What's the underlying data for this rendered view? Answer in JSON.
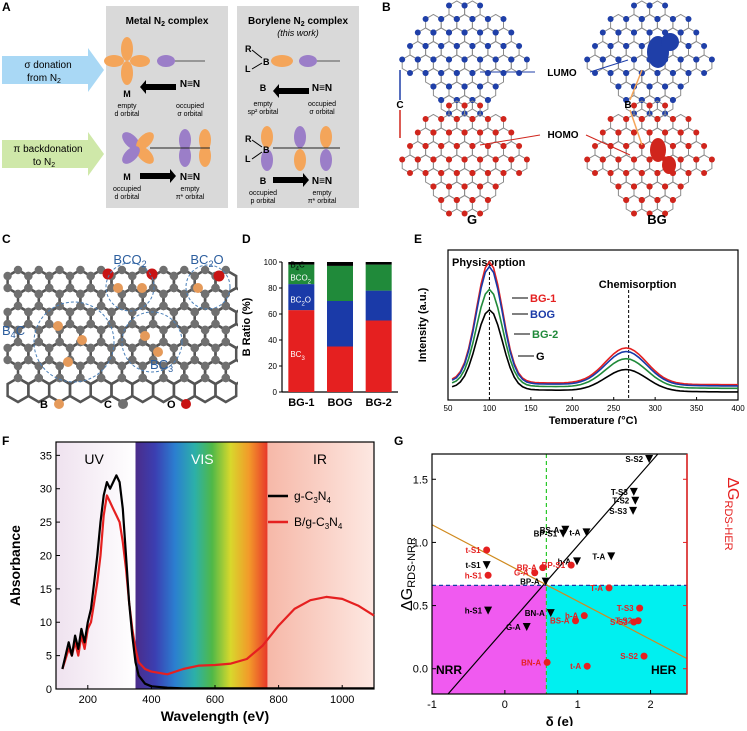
{
  "panel_labels": {
    "a": "A",
    "b": "B",
    "c": "C",
    "d": "D",
    "e": "E",
    "f": "F",
    "g": "G"
  },
  "panel_a": {
    "donation_label_1": "σ donation",
    "donation_label_2": "from N",
    "backdonation_label_1": "π backdonation",
    "backdonation_label_2": "to N",
    "metal_title": "Metal N",
    "metal_title_suffix": " complex",
    "borylene_title": "Borylene N",
    "borylene_title_suffix": " complex",
    "borylene_subtitle": "(this work)",
    "m_label": "M",
    "b_label": "B",
    "n2_label": "N≡N",
    "r_label": "R",
    "l_label": "L",
    "cap_m_top_1": "empty",
    "cap_m_top_2": "d orbital",
    "cap_n_top_1": "occupied",
    "cap_n_top_2": "σ orbital",
    "cap_b_top_1": "empty",
    "cap_b_top_2": "sp² orbital",
    "cap_nb_top_1": "occupied",
    "cap_nb_top_2": "σ orbital",
    "cap_m_bot_1": "occupied",
    "cap_m_bot_2": "d orbital",
    "cap_n_bot_1": "empty",
    "cap_n_bot_2": "π* orbital",
    "cap_b_bot_1": "occupied",
    "cap_b_bot_2": "p orbital",
    "cap_nb_bot_1": "empty",
    "cap_nb_bot_2": "π* orbital",
    "colors": {
      "orange": "#f4a55a",
      "purple": "#9b7ec8",
      "blue_arrow": "#a9d8f5",
      "green_arrow": "#cfe8a9",
      "box": "#d9d9d9"
    }
  },
  "panel_b": {
    "lumo": "LUMO",
    "homo": "HOMO",
    "c_label": "C",
    "b_label": "B",
    "g_label": "G",
    "bg_label": "BG",
    "colors": {
      "lumo": "#1f3fa8",
      "homo": "#d0251c",
      "atom": "#8a8a8a"
    }
  },
  "panel_c": {
    "bco2": "BCO",
    "bco2_sub": "2",
    "bc2o": "BC",
    "bc2o_sub": "2",
    "bc2o_tail": "O",
    "b4c": "B",
    "b4c_sub": "4",
    "b4c_tail": "C",
    "bc3": "BC",
    "bc3_sub": "3",
    "legend": [
      "B",
      "C",
      "O"
    ],
    "colors": {
      "b": "#e59a5a",
      "c": "#707070",
      "o": "#c81414",
      "circle": "#4a7fb8"
    }
  },
  "chart_data": [
    {
      "id": "D",
      "type": "bar",
      "stacked": true,
      "ylabel": "B Ratio (%)",
      "categories": [
        "BG-1",
        "BOG",
        "BG-2"
      ],
      "ylim": [
        0,
        100
      ],
      "yticks": [
        0,
        20,
        40,
        60,
        80,
        100
      ],
      "series": [
        {
          "name": "BC3",
          "label": "BC",
          "sub": "3",
          "color": "#e52020",
          "values": [
            63,
            35,
            55
          ]
        },
        {
          "name": "BC2O",
          "label": "BC",
          "sub": "2",
          "tail": "O",
          "color": "#1a3aa8",
          "values": [
            20,
            35,
            23
          ]
        },
        {
          "name": "BCO2",
          "label": "BCO",
          "sub": "2",
          "color": "#208a3a",
          "values": [
            15,
            27,
            20
          ]
        },
        {
          "name": "B4C",
          "label": "B",
          "sub": "4",
          "tail": "C",
          "color": "#000000",
          "values": [
            2,
            3,
            2
          ]
        }
      ]
    },
    {
      "id": "E",
      "type": "line",
      "xlabel": "Temperature (°C)",
      "ylabel": "Intensity (a.u.)",
      "xlim": [
        50,
        400
      ],
      "xticks": [
        50,
        100,
        150,
        200,
        250,
        300,
        350,
        400
      ],
      "annotations": [
        "Physisorption",
        "Chemisorption"
      ],
      "series": [
        {
          "name": "BG-1",
          "color": "#e52020",
          "peak1": 1.0,
          "peak2": 0.3,
          "base": 0.12
        },
        {
          "name": "BOG",
          "color": "#1a3aa8",
          "peak1": 0.97,
          "peak2": 0.28,
          "base": 0.11
        },
        {
          "name": "BG-2",
          "color": "#208a3a",
          "peak1": 0.8,
          "peak2": 0.24,
          "base": 0.09
        },
        {
          "name": "G",
          "color": "#000000",
          "peak1": 0.66,
          "peak2": 0.18,
          "base": 0.06
        }
      ]
    },
    {
      "id": "F",
      "type": "line",
      "xlabel": "Wavelength (eV)",
      "ylabel": "Absorbance",
      "xlim": [
        100,
        1100
      ],
      "ylim": [
        0,
        37
      ],
      "xticks": [
        200,
        400,
        600,
        800,
        1000
      ],
      "yticks": [
        0,
        5,
        10,
        15,
        20,
        25,
        30,
        35
      ],
      "regions": [
        "UV",
        "VIS",
        "IR"
      ],
      "series": [
        {
          "name": "g-C3N4",
          "label": "g-C",
          "sub1": "3",
          "mid": "N",
          "sub2": "4",
          "color": "#000000",
          "x": [
            120,
            140,
            150,
            160,
            170,
            180,
            190,
            200,
            210,
            220,
            230,
            240,
            250,
            260,
            270,
            280,
            290,
            300,
            310,
            320,
            330,
            340,
            350,
            360,
            380,
            400,
            450,
            500,
            600,
            700,
            800,
            900,
            1000,
            1100
          ],
          "y": [
            3,
            7,
            5,
            8,
            6,
            9,
            7,
            10,
            12,
            16,
            20,
            25,
            29,
            31,
            30,
            31,
            32,
            31,
            27,
            20,
            13,
            8,
            4,
            2,
            0.8,
            0.4,
            0.2,
            0.1,
            0.1,
            0.1,
            0.1,
            0.1,
            0.1,
            0.1
          ]
        },
        {
          "name": "B/g-C3N4",
          "label": "B/g-C",
          "sub1": "3",
          "mid": "N",
          "sub2": "4",
          "color": "#e52020",
          "x": [
            120,
            140,
            150,
            160,
            170,
            180,
            190,
            200,
            210,
            220,
            230,
            240,
            250,
            260,
            270,
            280,
            290,
            300,
            310,
            320,
            330,
            340,
            350,
            360,
            380,
            400,
            450,
            500,
            550,
            600,
            650,
            700,
            750,
            800,
            850,
            900,
            950,
            1000,
            1050,
            1100
          ],
          "y": [
            3,
            6,
            5,
            7,
            5,
            8,
            6,
            9,
            10,
            13,
            16,
            20,
            26,
            29,
            28,
            27,
            26,
            25,
            22,
            18,
            13,
            9,
            6,
            4,
            3,
            2.6,
            2.2,
            3.0,
            3.5,
            3.6,
            3.8,
            4.5,
            6.5,
            9.5,
            12,
            13.3,
            13.8,
            13.5,
            12.5,
            11
          ]
        }
      ]
    },
    {
      "id": "G",
      "type": "scatter",
      "xlabel": "δ (e)",
      "ylabel_left": "ΔG",
      "ylabel_left_sub": "RDS-NRR",
      "ylabel_right": "ΔG",
      "ylabel_right_sub": "RDS-HER",
      "xlim": [
        -1,
        2.5
      ],
      "ylim": [
        -0.2,
        1.7
      ],
      "xticks": [
        -1,
        0,
        1,
        2
      ],
      "yticks": [
        0.0,
        0.5,
        1.0,
        1.5
      ],
      "threshold": 0.66,
      "divider_x": 0.57,
      "regions": [
        "NRR",
        "HER"
      ],
      "nrr_series": [
        {
          "label": "S-S2",
          "x": 1.98,
          "y": 1.66
        },
        {
          "label": "T-S3",
          "x": 1.77,
          "y": 1.4
        },
        {
          "label": "T-S2",
          "x": 1.79,
          "y": 1.33
        },
        {
          "label": "S-S3",
          "x": 1.76,
          "y": 1.25
        },
        {
          "label": "BS-A",
          "x": 0.83,
          "y": 1.1
        },
        {
          "label": "t-A",
          "x": 1.12,
          "y": 1.08
        },
        {
          "label": "BP-S1",
          "x": 0.8,
          "y": 1.07
        },
        {
          "label": "T-A",
          "x": 1.46,
          "y": 0.89
        },
        {
          "label": "h-A",
          "x": 0.99,
          "y": 0.85
        },
        {
          "label": "t-S1",
          "x": -0.25,
          "y": 0.82
        },
        {
          "label": "BP-A",
          "x": 0.56,
          "y": 0.69
        },
        {
          "label": "BN-A",
          "x": 0.63,
          "y": 0.44
        },
        {
          "label": "h-S1",
          "x": -0.23,
          "y": 0.46
        },
        {
          "label": "G-A",
          "x": 0.3,
          "y": 0.33
        }
      ],
      "her_series": [
        {
          "label": "t-S1",
          "x": -0.25,
          "y": 0.94
        },
        {
          "label": "h-S1",
          "x": -0.23,
          "y": 0.74
        },
        {
          "label": "G-A",
          "x": 0.41,
          "y": 0.76
        },
        {
          "label": "BR-A",
          "x": 0.52,
          "y": 0.8
        },
        {
          "label": "BP-S1",
          "x": 0.91,
          "y": 0.82
        },
        {
          "label": "T-A",
          "x": 1.43,
          "y": 0.64
        },
        {
          "label": "T-S3",
          "x": 1.85,
          "y": 0.48
        },
        {
          "label": "h-A",
          "x": 1.09,
          "y": 0.42
        },
        {
          "label": "BS-A",
          "x": 0.97,
          "y": 0.38
        },
        {
          "label": "T-S2",
          "x": 1.83,
          "y": 0.38
        },
        {
          "label": "S-S3",
          "x": 1.77,
          "y": 0.37
        },
        {
          "label": "S-S2",
          "x": 1.91,
          "y": 0.1
        },
        {
          "label": "BN-A",
          "x": 0.58,
          "y": 0.05
        },
        {
          "label": "t-A",
          "x": 1.13,
          "y": 0.02
        }
      ]
    }
  ]
}
